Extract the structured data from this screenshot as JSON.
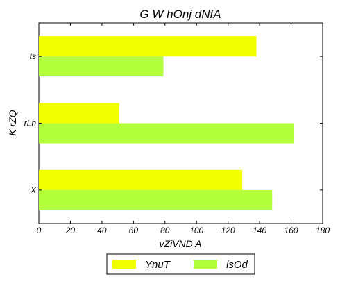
{
  "chart_data": {
    "type": "bar",
    "orientation": "horizontal",
    "title": "G W hOnj dNfA",
    "xlabel": "vZiVND A",
    "ylabel": "K  rZQ",
    "categories": [
      "X",
      "rLh",
      "ts"
    ],
    "series": [
      {
        "name": "YnuT",
        "values": [
          129,
          51,
          138
        ],
        "color": "#f2ff00"
      },
      {
        "name": "lsOd",
        "values": [
          148,
          162,
          79
        ],
        "color": "#b3ff3c"
      }
    ],
    "xlim": [
      0,
      180
    ],
    "xticks": [
      0,
      20,
      40,
      60,
      80,
      100,
      120,
      140,
      160,
      180
    ],
    "grid": false,
    "legend_position": "bottom-center"
  }
}
